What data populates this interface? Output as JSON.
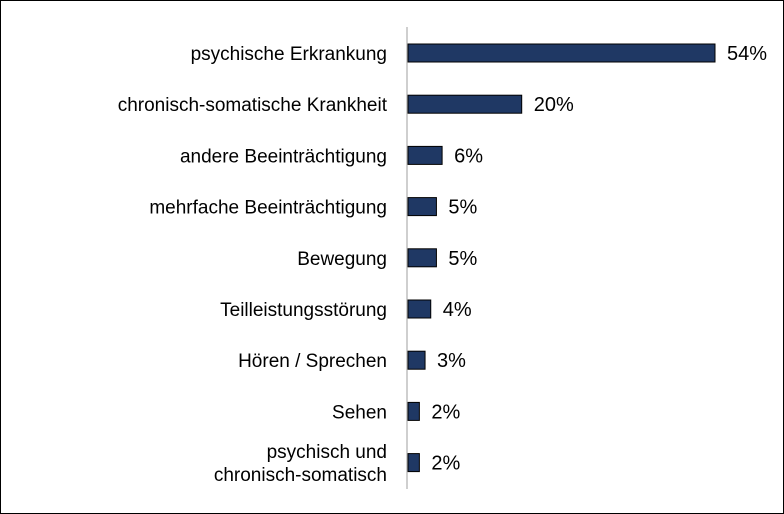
{
  "chart_data": {
    "type": "bar",
    "orientation": "horizontal",
    "categories": [
      [
        "psychische Erkrankung"
      ],
      [
        "chronisch-somatische Krankheit"
      ],
      [
        "andere Beeinträchtigung"
      ],
      [
        "mehrfache Beeinträchtigung"
      ],
      [
        "Bewegung"
      ],
      [
        "Teilleistungsstörung"
      ],
      [
        "Hören / Sprechen"
      ],
      [
        "Sehen"
      ],
      [
        "psychisch und",
        "chronisch-somatisch"
      ]
    ],
    "values": [
      54,
      20,
      6,
      5,
      5,
      4,
      3,
      2,
      2
    ],
    "value_labels": [
      "54%",
      "20%",
      "6%",
      "5%",
      "5%",
      "4%",
      "3%",
      "2%",
      "2%"
    ],
    "unit": "%",
    "xlim": [
      0,
      54
    ],
    "bar_color": "#1f3864",
    "grid": false,
    "legend": "none"
  }
}
